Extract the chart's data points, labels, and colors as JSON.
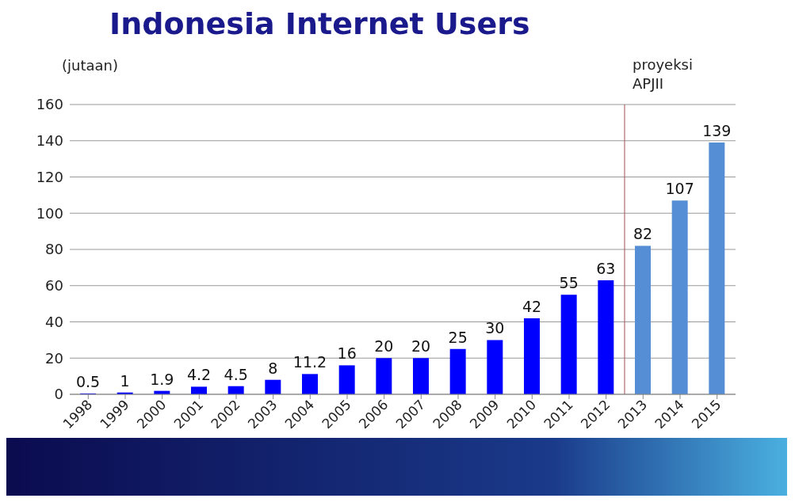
{
  "chart_data": {
    "type": "bar",
    "title": "Indonesia Internet Users",
    "ylabel": "(jutaan)",
    "categories": [
      "1998",
      "1999",
      "2000",
      "2001",
      "2002",
      "2003",
      "2004",
      "2005",
      "2006",
      "2007",
      "2008",
      "2009",
      "2010",
      "2011",
      "2012",
      "2013",
      "2014",
      "2015"
    ],
    "values": [
      0.5,
      1,
      1.9,
      4.2,
      4.5,
      8,
      11.2,
      16,
      20,
      20,
      25,
      30,
      42,
      55,
      63,
      82,
      107,
      139
    ],
    "colors": [
      "#0000ff",
      "#0000ff",
      "#0000ff",
      "#0000ff",
      "#0000ff",
      "#0000ff",
      "#0000ff",
      "#0000ff",
      "#0000ff",
      "#0000ff",
      "#0000ff",
      "#0000ff",
      "#0000ff",
      "#0000ff",
      "#0000ff",
      "#558ed5",
      "#558ed5",
      "#558ed5"
    ],
    "ylim": [
      0,
      160
    ],
    "yticks": [
      0,
      20,
      40,
      60,
      80,
      100,
      120,
      140,
      160
    ],
    "grid": "y",
    "data_labels": true,
    "ref_lines": [
      {
        "axis": "x",
        "value": "2013",
        "label": "proyeksi APJII",
        "color": "#a05050"
      }
    ]
  }
}
